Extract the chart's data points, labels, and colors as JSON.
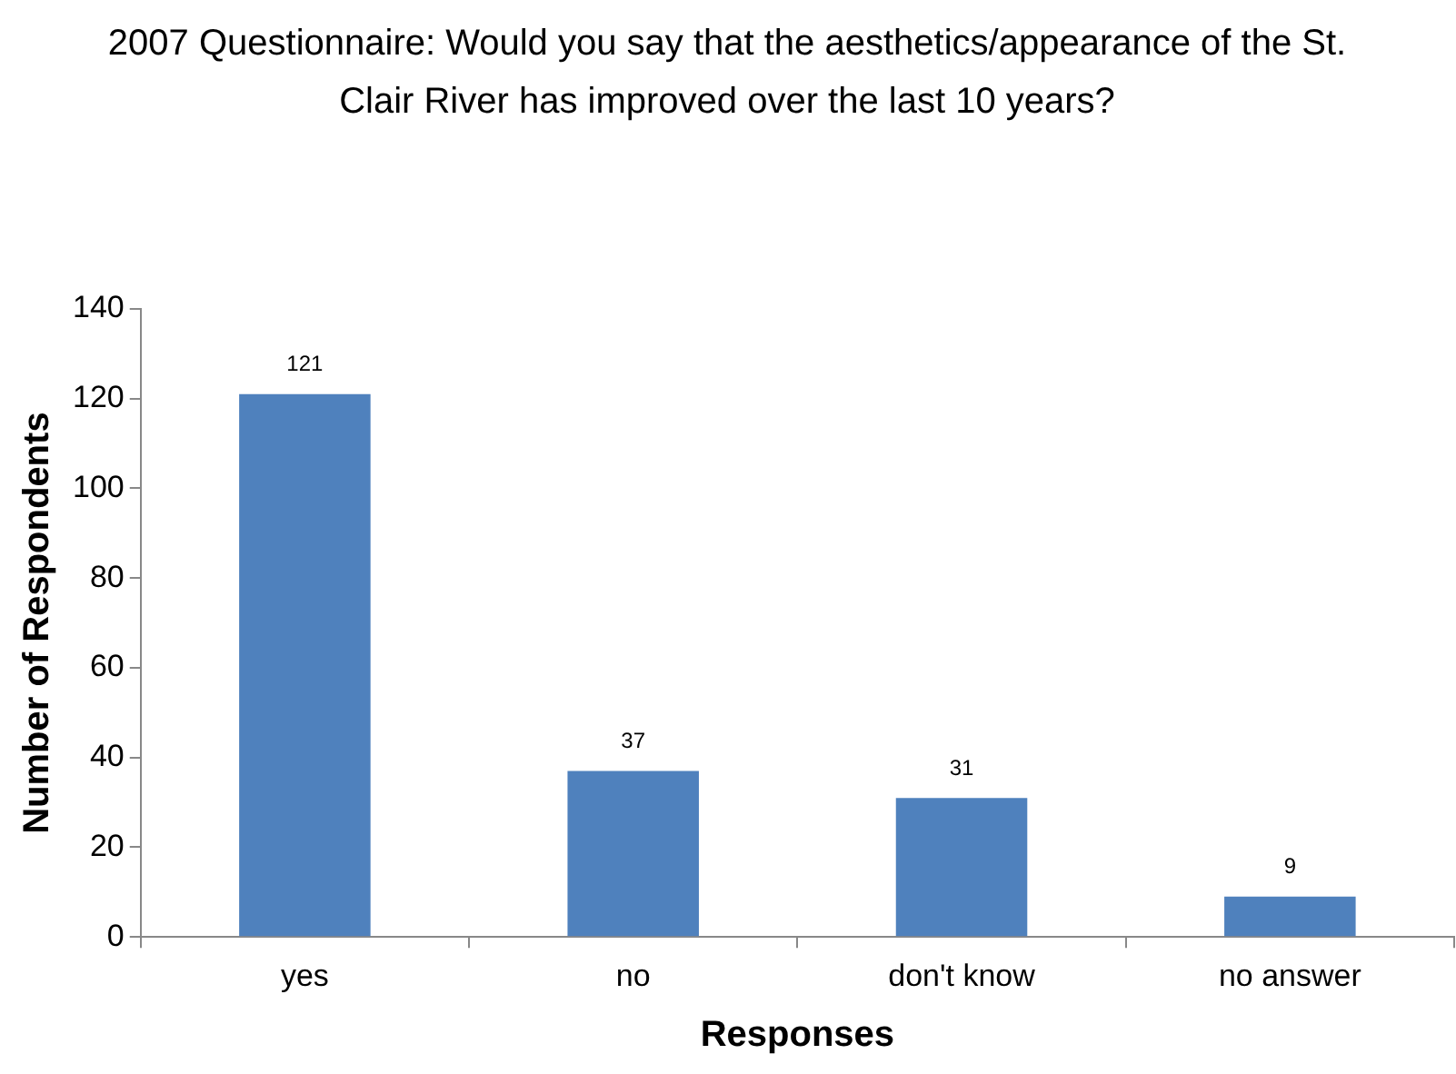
{
  "chart_data": {
    "type": "bar",
    "title": "2007 Questionnaire: Would you say that the aesthetics/appearance of the St. Clair River has improved over the last 10 years?",
    "xlabel": "Responses",
    "ylabel": "Number of Respondents",
    "categories": [
      "yes",
      "no",
      "don't know",
      "no answer"
    ],
    "values": [
      121,
      37,
      31,
      9
    ],
    "color": "#4f81bd",
    "ylim": [
      0,
      140
    ],
    "yticks": [
      0,
      20,
      40,
      60,
      80,
      100,
      120,
      140
    ],
    "grid": false,
    "legend": false,
    "data_labels": true
  }
}
